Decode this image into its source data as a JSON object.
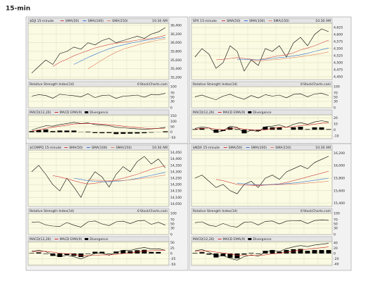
{
  "title": "15-min",
  "chart_data": [
    {
      "type": "line",
      "title": "$DJI 15-minute",
      "annotation": "10:30 AM",
      "color": "#000000",
      "values": [
        35300,
        35450,
        35600,
        35500,
        35750,
        35800,
        35900,
        35850,
        36000,
        35950,
        36050,
        36100,
        36000,
        36050,
        36100,
        36150,
        36100,
        36200,
        36250,
        36350
      ],
      "series": [
        {
          "name": "SMA(50)",
          "color": "#d04040",
          "values": [
            null,
            null,
            null,
            35450,
            35550,
            35620,
            35700,
            35760,
            35820,
            35880,
            35920,
            35960,
            35990,
            36010,
            36030,
            36060,
            36080,
            36100,
            36130,
            36170
          ]
        },
        {
          "name": "SMA(100)",
          "color": "#3070d0",
          "values": [
            null,
            null,
            null,
            null,
            null,
            null,
            35500,
            35580,
            35660,
            35730,
            35800,
            35860,
            35910,
            35950,
            35990,
            36020,
            36050,
            36080,
            36100,
            36120
          ]
        },
        {
          "name": "SMA(150)",
          "color": "#e08060",
          "values": [
            null,
            null,
            null,
            null,
            null,
            null,
            null,
            null,
            35400,
            35500,
            35600,
            35700,
            35780,
            35850,
            35900,
            35950,
            35990,
            36030,
            36060,
            36090
          ]
        }
      ],
      "ylim": [
        35150,
        36450
      ],
      "yticks": [
        {
          "value": 35200,
          "label": "35,200"
        },
        {
          "value": 35400,
          "label": "35,400"
        },
        {
          "value": 35600,
          "label": "35,600"
        },
        {
          "value": 35800,
          "label": "35,800"
        },
        {
          "value": 36000,
          "label": "36,000"
        },
        {
          "value": 36200,
          "label": "36,200"
        },
        {
          "value": 36400,
          "label": "36,400"
        }
      ],
      "grid": true
    },
    {
      "type": "line",
      "title": "Relative Strength Index(14)",
      "annotation": "©StockCharts.com",
      "color": "#000000",
      "values": [
        55,
        62,
        58,
        45,
        64,
        60,
        57,
        52,
        66,
        48,
        58,
        60,
        44,
        55,
        57,
        60,
        50,
        63,
        61,
        68
      ],
      "ylim": [
        0,
        100
      ],
      "yticks": [
        0,
        30,
        50,
        70,
        100
      ],
      "grid": true
    },
    {
      "type": "line",
      "title": "MACD(12,26)",
      "color": "#000000",
      "values": [
        20,
        40,
        60,
        55,
        70,
        80,
        90,
        80,
        85,
        70,
        65,
        60,
        45,
        40,
        35,
        30,
        28,
        30,
        35,
        45
      ],
      "series": [
        {
          "name": "MACD EMA(9)",
          "color": "#d02020",
          "values": [
            10,
            20,
            35,
            45,
            55,
            65,
            75,
            78,
            80,
            78,
            74,
            68,
            62,
            55,
            48,
            42,
            37,
            34,
            34,
            37
          ]
        },
        {
          "name": "Divergence",
          "color": "#000000",
          "style": "bar",
          "values": [
            10,
            20,
            25,
            10,
            15,
            15,
            15,
            2,
            5,
            -8,
            -9,
            -8,
            -17,
            -15,
            -13,
            -12,
            -9,
            -4,
            1,
            8
          ]
        }
      ],
      "ylim": [
        -60,
        160
      ],
      "yticks": [
        -50,
        0,
        50,
        100,
        150
      ],
      "grid": true
    },
    {
      "type": "line",
      "title": "SPX 15-minute",
      "annotation": "10:30 AM",
      "color": "#000000",
      "values": [
        4520,
        4550,
        4530,
        4480,
        4500,
        4560,
        4540,
        4470,
        4510,
        4490,
        4550,
        4540,
        4560,
        4520,
        4570,
        4590,
        4560,
        4600,
        4620,
        4610
      ],
      "series": [
        {
          "name": "SMA(50)",
          "color": "#d04040",
          "values": [
            null,
            null,
            null,
            4510,
            4512,
            4515,
            4518,
            4515,
            4512,
            4510,
            4515,
            4520,
            4525,
            4528,
            4535,
            4545,
            4552,
            4560,
            4570,
            4580
          ]
        },
        {
          "name": "SMA(100)",
          "color": "#3070d0",
          "values": [
            null,
            null,
            null,
            null,
            null,
            null,
            4512,
            4512,
            4510,
            4510,
            4512,
            4515,
            4518,
            4520,
            4524,
            4528,
            4533,
            4540,
            4546,
            4552
          ]
        },
        {
          "name": "SMA(150)",
          "color": "#e08060",
          "values": [
            null,
            null,
            null,
            null,
            null,
            null,
            null,
            null,
            4505,
            4506,
            4508,
            4510,
            4512,
            4515,
            4518,
            4521,
            4525,
            4529,
            4533,
            4538
          ]
        }
      ],
      "ylim": [
        4440,
        4640
      ],
      "yticks": [
        {
          "value": 4450,
          "label": "4,450"
        },
        {
          "value": 4475,
          "label": "4,475"
        },
        {
          "value": 4500,
          "label": "4,500"
        },
        {
          "value": 4525,
          "label": "4,525"
        },
        {
          "value": 4550,
          "label": "4,550"
        },
        {
          "value": 4575,
          "label": "4,575"
        },
        {
          "value": 4600,
          "label": "4,600"
        },
        {
          "value": 4625,
          "label": "4,625"
        }
      ],
      "grid": true
    },
    {
      "type": "line",
      "title": "Relative Strength Index(14)",
      "annotation": "©StockCharts.com",
      "color": "#000000",
      "values": [
        52,
        60,
        48,
        38,
        55,
        64,
        50,
        40,
        58,
        46,
        62,
        55,
        60,
        47,
        63,
        66,
        52,
        65,
        68,
        58
      ],
      "ylim": [
        0,
        100
      ],
      "yticks": [
        0,
        30,
        50,
        70,
        100
      ],
      "grid": true
    },
    {
      "type": "line",
      "title": "MACD(12,26)",
      "color": "#000000",
      "values": [
        2,
        5,
        3,
        -4,
        -2,
        6,
        4,
        -5,
        -1,
        -3,
        5,
        6,
        8,
        4,
        9,
        12,
        9,
        13,
        15,
        13
      ],
      "series": [
        {
          "name": "MACD EMA(9)",
          "color": "#d02020",
          "values": [
            1,
            2,
            3,
            1,
            0,
            2,
            3,
            1,
            0,
            -1,
            0,
            2,
            4,
            4,
            5,
            7,
            8,
            9,
            11,
            12
          ]
        },
        {
          "name": "Divergence",
          "color": "#000000",
          "style": "bar",
          "values": [
            1,
            3,
            0,
            -5,
            -2,
            4,
            1,
            -6,
            -1,
            -2,
            5,
            4,
            4,
            0,
            4,
            5,
            1,
            4,
            4,
            1
          ]
        }
      ],
      "ylim": [
        -15,
        25
      ],
      "yticks": [
        -10,
        0,
        10,
        20
      ],
      "grid": true
    },
    {
      "type": "line",
      "title": "$COMPQ 15-minute",
      "annotation": "10:30 AM",
      "color": "#000000",
      "values": [
        14300,
        14350,
        14280,
        14200,
        14150,
        14250,
        14180,
        14100,
        14220,
        14300,
        14260,
        14180,
        14280,
        14340,
        14300,
        14380,
        14420,
        14360,
        14400,
        14330
      ],
      "series": [
        {
          "name": "SMA(50)",
          "color": "#d04040",
          "values": [
            null,
            null,
            null,
            14270,
            14260,
            14245,
            14230,
            14215,
            14205,
            14210,
            14220,
            14225,
            14235,
            14250,
            14265,
            14280,
            14300,
            14320,
            14335,
            14345
          ]
        },
        {
          "name": "SMA(100)",
          "color": "#3070d0",
          "values": [
            null,
            null,
            null,
            null,
            null,
            null,
            14250,
            14240,
            14230,
            14225,
            14222,
            14222,
            14225,
            14230,
            14238,
            14248,
            14260,
            14272,
            14284,
            14295
          ]
        },
        {
          "name": "SMA(150)",
          "color": "#e08060",
          "values": [
            null,
            null,
            null,
            null,
            null,
            null,
            null,
            null,
            14240,
            14235,
            14232,
            14230,
            14230,
            14232,
            14236,
            14242,
            14250,
            14258,
            14266,
            14274
          ]
        }
      ],
      "ylim": [
        14030,
        14470
      ],
      "yticks": [
        {
          "value": 14050,
          "label": "14,050"
        },
        {
          "value": 14100,
          "label": "14,100"
        },
        {
          "value": 14150,
          "label": "14,150"
        },
        {
          "value": 14200,
          "label": "14,200"
        },
        {
          "value": 14250,
          "label": "14,250"
        },
        {
          "value": 14300,
          "label": "14,300"
        },
        {
          "value": 14350,
          "label": "14,350"
        },
        {
          "value": 14400,
          "label": "14,400"
        },
        {
          "value": 14450,
          "label": "14,450"
        }
      ],
      "grid": true
    },
    {
      "type": "line",
      "title": "Relative Strength Index(14)",
      "annotation": "©StockCharts.com",
      "color": "#000000",
      "values": [
        58,
        60,
        45,
        40,
        38,
        57,
        44,
        35,
        60,
        64,
        50,
        42,
        60,
        63,
        52,
        64,
        67,
        48,
        58,
        44
      ],
      "ylim": [
        0,
        100
      ],
      "yticks": [
        0,
        30,
        50,
        70,
        100
      ],
      "grid": true
    },
    {
      "type": "line",
      "title": "MACD(12,26)",
      "color": "#000000",
      "values": [
        10,
        15,
        8,
        -5,
        -15,
        -8,
        -15,
        -25,
        -12,
        0,
        2,
        -8,
        5,
        15,
        14,
        22,
        28,
        20,
        22,
        15
      ],
      "series": [
        {
          "name": "MACD EMA(9)",
          "color": "#d02020",
          "values": [
            8,
            10,
            10,
            6,
            1,
            -1,
            -4,
            -9,
            -10,
            -8,
            -6,
            -6,
            -4,
            0,
            3,
            7,
            11,
            13,
            15,
            15
          ]
        },
        {
          "name": "Divergence",
          "color": "#000000",
          "style": "bar",
          "values": [
            2,
            5,
            -2,
            -11,
            -16,
            -7,
            -11,
            -16,
            -2,
            8,
            8,
            -2,
            9,
            15,
            11,
            15,
            17,
            7,
            7,
            0
          ]
        }
      ],
      "ylim": [
        -55,
        55
      ],
      "yticks": [
        -50,
        -25,
        0,
        25,
        50
      ],
      "grid": true
    },
    {
      "type": "line",
      "title": "$NDX 15-minute",
      "annotation": "10:30 AM",
      "color": "#000000",
      "values": [
        15800,
        15850,
        15750,
        15650,
        15700,
        15600,
        15550,
        15700,
        15750,
        15650,
        15800,
        15850,
        15780,
        15900,
        15950,
        16000,
        15950,
        16050,
        16100,
        16150
      ],
      "series": [
        {
          "name": "SMA(50)",
          "color": "#d04040",
          "values": [
            null,
            null,
            null,
            15780,
            15760,
            15730,
            15700,
            15690,
            15685,
            15680,
            15690,
            15700,
            15710,
            15730,
            15760,
            15790,
            15820,
            15850,
            15880,
            15910
          ]
        },
        {
          "name": "SMA(100)",
          "color": "#3070d0",
          "values": [
            null,
            null,
            null,
            null,
            null,
            null,
            15720,
            15710,
            15700,
            15695,
            15695,
            15700,
            15705,
            15712,
            15722,
            15735,
            15750,
            15765,
            15782,
            15800
          ]
        },
        {
          "name": "SMA(150)",
          "color": "#e08060",
          "values": [
            null,
            null,
            null,
            null,
            null,
            null,
            null,
            null,
            15690,
            15690,
            15690,
            15692,
            15695,
            15700,
            15705,
            15712,
            15720,
            15730,
            15740,
            15752
          ]
        }
      ],
      "ylim": [
        15350,
        16250
      ],
      "yticks": [
        {
          "value": 15400,
          "label": "15,400"
        },
        {
          "value": 15600,
          "label": "15,600"
        },
        {
          "value": 15800,
          "label": "15,800"
        },
        {
          "value": 16000,
          "label": "16,000"
        },
        {
          "value": 16200,
          "label": "16,200"
        }
      ],
      "grid": true
    },
    {
      "type": "line",
      "title": "Relative Strength Index(14)",
      "annotation": "©StockCharts.com",
      "color": "#000000",
      "values": [
        56,
        60,
        44,
        38,
        52,
        40,
        35,
        58,
        60,
        45,
        62,
        64,
        50,
        63,
        65,
        66,
        52,
        66,
        68,
        67
      ],
      "ylim": [
        0,
        100
      ],
      "yticks": [
        0,
        30,
        50,
        70,
        100
      ],
      "grid": true
    },
    {
      "type": "line",
      "title": "MACD(12,26)",
      "color": "#000000",
      "values": [
        10,
        15,
        5,
        -10,
        -8,
        -18,
        -25,
        -12,
        -5,
        -10,
        5,
        12,
        8,
        18,
        25,
        30,
        26,
        32,
        35,
        38
      ],
      "series": [
        {
          "name": "MACD EMA(9)",
          "color": "#d02020",
          "values": [
            8,
            10,
            9,
            5,
            2,
            -2,
            -7,
            -8,
            -7,
            -8,
            -5,
            -1,
            1,
            5,
            9,
            13,
            16,
            19,
            22,
            25
          ]
        },
        {
          "name": "Divergence",
          "color": "#000000",
          "style": "bar",
          "values": [
            2,
            5,
            -4,
            -15,
            -10,
            -16,
            -18,
            -4,
            2,
            -2,
            10,
            13,
            7,
            13,
            16,
            17,
            10,
            13,
            13,
            13
          ]
        }
      ],
      "ylim": [
        -45,
        45
      ],
      "yticks": [
        -40,
        -20,
        0,
        20,
        40
      ],
      "grid": true
    }
  ]
}
